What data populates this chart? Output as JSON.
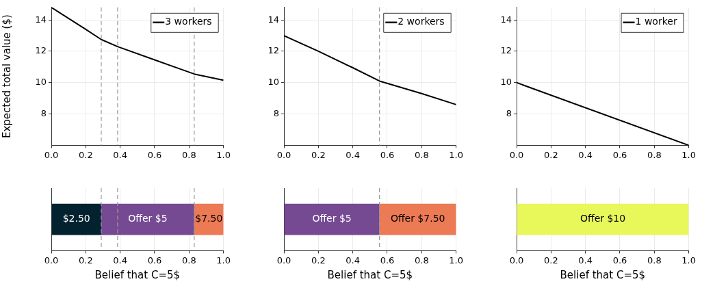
{
  "chart_data": [
    {
      "type": "line",
      "ylabel": "Expected total value ($)",
      "xlim": [
        0,
        1
      ],
      "ylim": [
        6,
        14.8
      ],
      "xticks": [
        {
          "value": 0,
          "label": "0.0"
        },
        {
          "value": 0.2,
          "label": "0.2"
        },
        {
          "value": 0.4,
          "label": "0.4"
        },
        {
          "value": 0.6,
          "label": "0.6"
        },
        {
          "value": 0.8,
          "label": "0.8"
        },
        {
          "value": 1,
          "label": "1.0"
        }
      ],
      "yticks": [
        8,
        10,
        12,
        14
      ],
      "grid": true,
      "legend": "top right",
      "marker": "none",
      "line_style": "solid",
      "series": [
        {
          "name": "3 workers",
          "color": "#000000",
          "x": [
            0,
            0.1,
            0.2,
            0.29,
            0.385,
            0.6,
            0.83,
            1
          ],
          "values": [
            14.8,
            14.1,
            13.4,
            12.75,
            12.3,
            11.45,
            10.55,
            10.15
          ]
        }
      ],
      "ref_lines": [
        {
          "axis": "x",
          "value": 0.29,
          "color": "#999999",
          "line_style": "dashed"
        },
        {
          "axis": "x",
          "value": 0.385,
          "color": "#999999",
          "line_style": "dashed"
        },
        {
          "axis": "x",
          "value": 0.83,
          "color": "#999999",
          "line_style": "dashed"
        }
      ]
    },
    {
      "type": "line",
      "xlim": [
        0,
        1
      ],
      "ylim": [
        6,
        14.8
      ],
      "xticks": [
        {
          "value": 0,
          "label": "0.0"
        },
        {
          "value": 0.2,
          "label": "0.2"
        },
        {
          "value": 0.4,
          "label": "0.4"
        },
        {
          "value": 0.6,
          "label": "0.6"
        },
        {
          "value": 0.8,
          "label": "0.8"
        },
        {
          "value": 1,
          "label": "1.0"
        }
      ],
      "yticks": [
        8,
        10,
        12,
        14
      ],
      "grid": true,
      "legend": "top right",
      "marker": "none",
      "line_style": "solid",
      "series": [
        {
          "name": "2 workers",
          "color": "#000000",
          "x": [
            0,
            0.2,
            0.4,
            0.555,
            0.8,
            1
          ],
          "values": [
            13,
            12.0,
            10.95,
            10.1,
            9.3,
            8.6
          ]
        }
      ],
      "ref_lines": [
        {
          "axis": "x",
          "value": 0.555,
          "color": "#999999",
          "line_style": "dashed"
        }
      ]
    },
    {
      "type": "line",
      "xlim": [
        0,
        1
      ],
      "ylim": [
        6,
        14.8
      ],
      "xticks": [
        {
          "value": 0,
          "label": "0.0"
        },
        {
          "value": 0.2,
          "label": "0.2"
        },
        {
          "value": 0.4,
          "label": "0.4"
        },
        {
          "value": 0.6,
          "label": "0.6"
        },
        {
          "value": 0.8,
          "label": "0.8"
        },
        {
          "value": 1,
          "label": "1.0"
        }
      ],
      "yticks": [
        8,
        10,
        12,
        14
      ],
      "grid": true,
      "legend": "top right",
      "marker": "none",
      "line_style": "solid",
      "series": [
        {
          "name": "1 worker",
          "color": "#000000",
          "x": [
            0,
            1
          ],
          "values": [
            10,
            6
          ]
        }
      ]
    },
    {
      "type": "bar",
      "orientation": "horizontal",
      "stacked": true,
      "xlabel": "Belief that C=5$",
      "categories": [
        null
      ],
      "xlim": [
        0,
        1
      ],
      "xticks": [
        {
          "value": 0,
          "label": "0.0"
        },
        {
          "value": 0.2,
          "label": "0.2"
        },
        {
          "value": 0.4,
          "label": "0.4"
        },
        {
          "value": 0.6,
          "label": "0.6"
        },
        {
          "value": 0.8,
          "label": "0.8"
        },
        {
          "value": 1,
          "label": "1.0"
        }
      ],
      "grid": "x",
      "tick_labels": "x",
      "series": [
        {
          "name": "$2.50",
          "color": "#03222f",
          "values": [
            0.29
          ]
        },
        {
          "name": "Offer $5",
          "color": "#764a92",
          "values": [
            0.54
          ]
        },
        {
          "name": "$7.50",
          "color": "#ec7a55",
          "values": [
            0.17
          ]
        }
      ],
      "ref_lines": [
        {
          "axis": "x",
          "value": 0.29,
          "color": "#999999",
          "line_style": "dashed"
        },
        {
          "axis": "x",
          "value": 0.385,
          "color": "#999999",
          "line_style": "dashed"
        },
        {
          "axis": "x",
          "value": 0.83,
          "color": "#999999",
          "line_style": "dashed"
        }
      ]
    },
    {
      "type": "bar",
      "orientation": "horizontal",
      "stacked": true,
      "xlabel": "Belief that C=5$",
      "categories": [
        null
      ],
      "xlim": [
        0,
        1
      ],
      "xticks": [
        {
          "value": 0,
          "label": "0.0"
        },
        {
          "value": 0.2,
          "label": "0.2"
        },
        {
          "value": 0.4,
          "label": "0.4"
        },
        {
          "value": 0.6,
          "label": "0.6"
        },
        {
          "value": 0.8,
          "label": "0.8"
        },
        {
          "value": 1,
          "label": "1.0"
        }
      ],
      "grid": "x",
      "tick_labels": "x",
      "series": [
        {
          "name": "Offer $5",
          "color": "#764a92",
          "values": [
            0.555
          ]
        },
        {
          "name": "Offer $7.50",
          "color": "#ec7a55",
          "values": [
            0.445
          ]
        }
      ],
      "ref_lines": [
        {
          "axis": "x",
          "value": 0.555,
          "color": "#999999",
          "line_style": "dashed"
        }
      ]
    },
    {
      "type": "bar",
      "orientation": "horizontal",
      "stacked": true,
      "xlabel": "Belief that C=5$",
      "categories": [
        null
      ],
      "xlim": [
        0,
        1
      ],
      "xticks": [
        {
          "value": 0,
          "label": "0.0"
        },
        {
          "value": 0.2,
          "label": "0.2"
        },
        {
          "value": 0.4,
          "label": "0.4"
        },
        {
          "value": 0.6,
          "label": "0.6"
        },
        {
          "value": 0.8,
          "label": "0.8"
        },
        {
          "value": 1,
          "label": "1.0"
        }
      ],
      "grid": "x",
      "tick_labels": "x",
      "series": [
        {
          "name": "Offer $10",
          "color": "#e8f75a",
          "values": [
            1
          ]
        }
      ]
    }
  ]
}
